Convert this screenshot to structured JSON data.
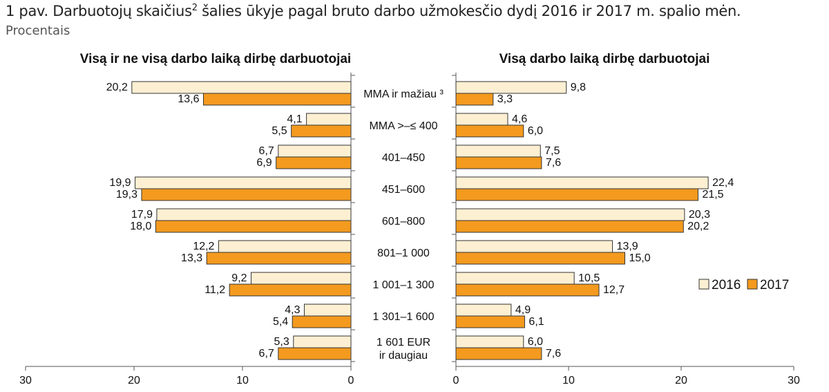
{
  "header": {
    "title_main": "1 pav. Darbuotojų skaičius",
    "title_sup": "2",
    "title_rest": " šalies ūkyje pagal bruto darbo užmokesčio dydį 2016 ir 2017 m. spalio mėn.",
    "subtitle": "Procentais"
  },
  "colors": {
    "y2016": "#fdefd2",
    "y2017": "#f39a1f",
    "stroke": "#333333"
  },
  "chart_data": [
    {
      "type": "bar",
      "orientation": "horizontal-reversed",
      "title": "Visą ir ne visą darbo laiką dirbę darbuotojai",
      "categories": [
        "MMA ir mažiau",
        "MMA >–≤ 400",
        "401–450",
        "451–600",
        "601–800",
        "801–1 000",
        "1 001–1 300",
        "1 301–1 600",
        "1 601 EUR ir daugiau"
      ],
      "category_display": [
        [
          "MMA ir mažiau ³"
        ],
        [
          "MMA >–≤ 400"
        ],
        [
          "401–450"
        ],
        [
          "451–600"
        ],
        [
          "601–800"
        ],
        [
          "801–1 000"
        ],
        [
          "1 001–1 300"
        ],
        [
          "1 301–1 600"
        ],
        [
          "1 601 EUR",
          "ir daugiau"
        ]
      ],
      "series": [
        {
          "name": "2016",
          "values": [
            20.2,
            4.1,
            6.7,
            19.9,
            17.9,
            12.2,
            9.2,
            4.3,
            5.3
          ],
          "labels": [
            "20,2",
            "4,1",
            "6,7",
            "19,9",
            "17,9",
            "12,2",
            "9,2",
            "4,3",
            "5,3"
          ]
        },
        {
          "name": "2017",
          "values": [
            13.6,
            5.5,
            6.9,
            19.3,
            18.0,
            13.3,
            11.2,
            5.4,
            6.7
          ],
          "labels": [
            "13,6",
            "5,5",
            "6,9",
            "19,3",
            "18,0",
            "13,3",
            "11,2",
            "5,4",
            "6,7"
          ]
        }
      ],
      "xlim": [
        0,
        30
      ],
      "ticks": [
        30,
        20,
        10,
        0
      ]
    },
    {
      "type": "bar",
      "orientation": "horizontal",
      "title": "Visą darbo laiką dirbę darbuotojai",
      "series": [
        {
          "name": "2016",
          "values": [
            9.8,
            4.6,
            7.5,
            22.4,
            20.3,
            13.9,
            10.5,
            4.9,
            6.0
          ],
          "labels": [
            "9,8",
            "4,6",
            "7,5",
            "22,4",
            "20,3",
            "13,9",
            "10,5",
            "4,9",
            "6,0"
          ]
        },
        {
          "name": "2017",
          "values": [
            3.3,
            6.0,
            7.6,
            21.5,
            20.2,
            15.0,
            12.7,
            6.1,
            7.6
          ],
          "labels": [
            "3,3",
            "6,0",
            "7,6",
            "21,5",
            "20,2",
            "15,0",
            "12,7",
            "6,1",
            "7,6"
          ]
        }
      ],
      "xlim": [
        0,
        30
      ],
      "ticks": [
        0,
        10,
        20,
        30
      ],
      "legend": [
        "2016",
        "2017"
      ],
      "legend_position": "right"
    }
  ]
}
